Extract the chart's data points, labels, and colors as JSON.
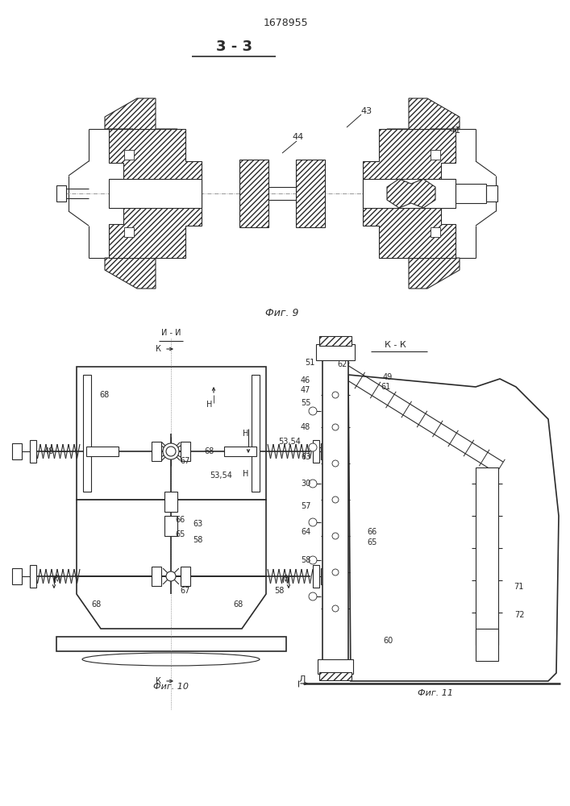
{
  "title_patent": "1678955",
  "section_label": "3 - 3",
  "fig9_label": "Фиг. 9",
  "fig10_label": "Фиг. 10",
  "fig11_label": "Фиг. 11",
  "background_color": "#ffffff",
  "line_color": "#2a2a2a"
}
